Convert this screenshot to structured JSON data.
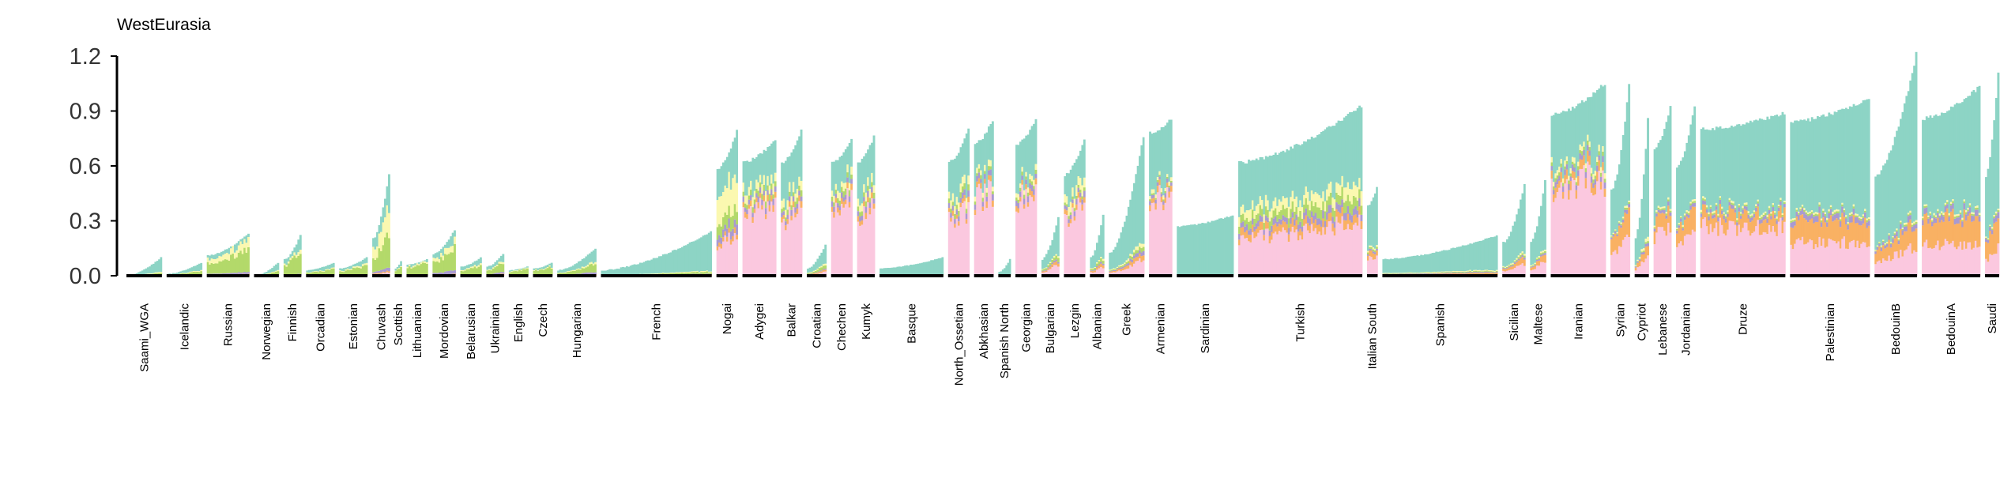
{
  "chart_data": {
    "type": "bar",
    "subtype": "stacked-admixture",
    "title": "WestEurasia",
    "xlabel": "",
    "ylabel": "",
    "ylim": [
      0,
      1.2
    ],
    "yticks": [
      "0.0",
      "0.3",
      "0.6",
      "0.9",
      "1.2"
    ],
    "grid": false,
    "legend": "none",
    "component_colors": {
      "pink": "#fbc8df",
      "orange": "#f9b163",
      "purple": "#a99ad1",
      "green": "#b3d96a",
      "yellow": "#fbf8b0",
      "teal": "#8dd4c5"
    },
    "series_order": [
      "pink",
      "orange",
      "purple",
      "green",
      "yellow",
      "teal"
    ],
    "populations": [
      {
        "name": "Saami_WGA",
        "start": 0.0,
        "end": 0.1,
        "pink": 0.0,
        "orange": 0.0,
        "purple": 0.005,
        "green": 0.01,
        "yellow": 0.005,
        "teal": 0.03
      },
      {
        "name": "Icelandic",
        "start": 0.01,
        "end": 0.07,
        "pink": 0.0,
        "orange": 0.0,
        "purple": 0.005,
        "green": 0.02,
        "yellow": 0.005,
        "teal": 0.02
      },
      {
        "name": "Russian",
        "start": 0.11,
        "end": 0.23,
        "pink": 0.0,
        "orange": 0.01,
        "purple": 0.01,
        "green": 0.12,
        "yellow": 0.05,
        "teal": 0.01
      },
      {
        "name": "Norwegian",
        "start": 0.0,
        "end": 0.07,
        "pink": 0.0,
        "orange": 0.0,
        "purple": 0.005,
        "green": 0.02,
        "yellow": 0.005,
        "teal": 0.02
      },
      {
        "name": "Finnish",
        "start": 0.09,
        "end": 0.22,
        "pink": 0.0,
        "orange": 0.0,
        "purple": 0.01,
        "green": 0.12,
        "yellow": 0.02,
        "teal": 0.01
      },
      {
        "name": "Orcadian",
        "start": 0.03,
        "end": 0.07,
        "pink": 0.0,
        "orange": 0.0,
        "purple": 0.005,
        "green": 0.03,
        "yellow": 0.005,
        "teal": 0.01
      },
      {
        "name": "Estonian",
        "start": 0.04,
        "end": 0.1,
        "pink": 0.0,
        "orange": 0.0,
        "purple": 0.005,
        "green": 0.05,
        "yellow": 0.01,
        "teal": 0.01
      },
      {
        "name": "Chuvash",
        "start": 0.2,
        "end": 0.56,
        "pink": 0.02,
        "orange": 0.01,
        "purple": 0.02,
        "green": 0.2,
        "yellow": 0.16,
        "teal": 0.01
      },
      {
        "name": "Scottish",
        "start": 0.04,
        "end": 0.08,
        "pink": 0.0,
        "orange": 0.0,
        "purple": 0.005,
        "green": 0.04,
        "yellow": 0.005,
        "teal": 0.01
      },
      {
        "name": "Lithuanian",
        "start": 0.06,
        "end": 0.09,
        "pink": 0.0,
        "orange": 0.0,
        "purple": 0.005,
        "green": 0.06,
        "yellow": 0.01,
        "teal": 0.01
      },
      {
        "name": "Mordovian",
        "start": 0.12,
        "end": 0.25,
        "pink": 0.0,
        "orange": 0.01,
        "purple": 0.02,
        "green": 0.12,
        "yellow": 0.04,
        "teal": 0.01
      },
      {
        "name": "Belarusian",
        "start": 0.05,
        "end": 0.1,
        "pink": 0.0,
        "orange": 0.0,
        "purple": 0.005,
        "green": 0.05,
        "yellow": 0.01,
        "teal": 0.01
      },
      {
        "name": "Ukrainian",
        "start": 0.05,
        "end": 0.12,
        "pink": 0.0,
        "orange": 0.01,
        "purple": 0.01,
        "green": 0.05,
        "yellow": 0.01,
        "teal": 0.01
      },
      {
        "name": "English",
        "start": 0.03,
        "end": 0.05,
        "pink": 0.0,
        "orange": 0.0,
        "purple": 0.005,
        "green": 0.03,
        "yellow": 0.005,
        "teal": 0.01
      },
      {
        "name": "Czech",
        "start": 0.04,
        "end": 0.07,
        "pink": 0.0,
        "orange": 0.0,
        "purple": 0.005,
        "green": 0.04,
        "yellow": 0.005,
        "teal": 0.01
      },
      {
        "name": "Hungarian",
        "start": 0.03,
        "end": 0.15,
        "pink": 0.0,
        "orange": 0.01,
        "purple": 0.01,
        "green": 0.04,
        "yellow": 0.01,
        "teal": 0.02
      },
      {
        "name": "French",
        "start": 0.03,
        "end": 0.24,
        "pink": 0.0,
        "orange": 0.005,
        "purple": 0.005,
        "green": 0.01,
        "yellow": 0.005,
        "teal": 0.03
      },
      {
        "name": "Nogai",
        "start": 0.58,
        "end": 0.79,
        "pink": 0.22,
        "orange": 0.03,
        "purple": 0.05,
        "green": 0.08,
        "yellow": 0.18,
        "teal": 0.15
      },
      {
        "name": "Adygei",
        "start": 0.62,
        "end": 0.74,
        "pink": 0.38,
        "orange": 0.03,
        "purple": 0.03,
        "green": 0.03,
        "yellow": 0.05,
        "teal": 0.18
      },
      {
        "name": "Balkar",
        "start": 0.62,
        "end": 0.79,
        "pink": 0.36,
        "orange": 0.03,
        "purple": 0.03,
        "green": 0.03,
        "yellow": 0.05,
        "teal": 0.19
      },
      {
        "name": "Croatian",
        "start": 0.04,
        "end": 0.17,
        "pink": 0.02,
        "orange": 0.01,
        "purple": 0.005,
        "green": 0.02,
        "yellow": 0.01,
        "teal": 0.04
      },
      {
        "name": "Chechen",
        "start": 0.62,
        "end": 0.74,
        "pink": 0.4,
        "orange": 0.03,
        "purple": 0.03,
        "green": 0.03,
        "yellow": 0.04,
        "teal": 0.16
      },
      {
        "name": "Kumyk",
        "start": 0.62,
        "end": 0.76,
        "pink": 0.38,
        "orange": 0.03,
        "purple": 0.03,
        "green": 0.03,
        "yellow": 0.05,
        "teal": 0.18
      },
      {
        "name": "Basque",
        "start": 0.04,
        "end": 0.1,
        "pink": 0.0,
        "orange": 0.0,
        "purple": 0.0,
        "green": 0.005,
        "yellow": 0.0,
        "teal": 0.06
      },
      {
        "name": "North_Ossetian",
        "start": 0.62,
        "end": 0.8,
        "pink": 0.35,
        "orange": 0.03,
        "purple": 0.03,
        "green": 0.03,
        "yellow": 0.05,
        "teal": 0.21
      },
      {
        "name": "Abkhasian",
        "start": 0.72,
        "end": 0.85,
        "pink": 0.45,
        "orange": 0.03,
        "purple": 0.03,
        "green": 0.02,
        "yellow": 0.03,
        "teal": 0.24
      },
      {
        "name": "Spanish North",
        "start": 0.02,
        "end": 0.09,
        "pink": 0.0,
        "orange": 0.0,
        "purple": 0.0,
        "green": 0.005,
        "yellow": 0.0,
        "teal": 0.06
      },
      {
        "name": "Georgian",
        "start": 0.72,
        "end": 0.85,
        "pink": 0.45,
        "orange": 0.03,
        "purple": 0.03,
        "green": 0.02,
        "yellow": 0.03,
        "teal": 0.26
      },
      {
        "name": "Bulgarian",
        "start": 0.09,
        "end": 0.32,
        "pink": 0.06,
        "orange": 0.02,
        "purple": 0.01,
        "green": 0.02,
        "yellow": 0.01,
        "teal": 0.09
      },
      {
        "name": "Lezgin",
        "start": 0.55,
        "end": 0.75,
        "pink": 0.42,
        "orange": 0.03,
        "purple": 0.03,
        "green": 0.02,
        "yellow": 0.06,
        "teal": 0.12
      },
      {
        "name": "Albanian",
        "start": 0.1,
        "end": 0.33,
        "pink": 0.05,
        "orange": 0.02,
        "purple": 0.01,
        "green": 0.02,
        "yellow": 0.01,
        "teal": 0.12
      },
      {
        "name": "Greek",
        "start": 0.12,
        "end": 0.76,
        "pink": 0.08,
        "orange": 0.03,
        "purple": 0.02,
        "green": 0.02,
        "yellow": 0.02,
        "teal": 0.2
      },
      {
        "name": "Armenian",
        "start": 0.78,
        "end": 0.86,
        "pink": 0.42,
        "orange": 0.03,
        "purple": 0.02,
        "green": 0.01,
        "yellow": 0.02,
        "teal": 0.35
      },
      {
        "name": "Sardinian",
        "start": 0.27,
        "end": 0.33,
        "pink": 0.0,
        "orange": 0.0,
        "purple": 0.0,
        "green": 0.0,
        "yellow": 0.0,
        "teal": 0.3
      },
      {
        "name": "Turkish",
        "start": 0.62,
        "end": 0.93,
        "pink": 0.28,
        "orange": 0.05,
        "purple": 0.04,
        "green": 0.06,
        "yellow": 0.07,
        "teal": 0.28
      },
      {
        "name": "Italian South",
        "start": 0.38,
        "end": 0.48,
        "pink": 0.1,
        "orange": 0.03,
        "purple": 0.01,
        "green": 0.01,
        "yellow": 0.01,
        "teal": 0.27
      },
      {
        "name": "Spanish",
        "start": 0.09,
        "end": 0.22,
        "pink": 0.005,
        "orange": 0.01,
        "purple": 0.005,
        "green": 0.005,
        "yellow": 0.005,
        "teal": 0.12
      },
      {
        "name": "Sicilian",
        "start": 0.18,
        "end": 0.5,
        "pink": 0.06,
        "orange": 0.03,
        "purple": 0.01,
        "green": 0.01,
        "yellow": 0.01,
        "teal": 0.24
      },
      {
        "name": "Maltese",
        "start": 0.19,
        "end": 0.52,
        "pink": 0.08,
        "orange": 0.04,
        "purple": 0.01,
        "green": 0.01,
        "yellow": 0.01,
        "teal": 0.25
      },
      {
        "name": "Iranian",
        "start": 0.88,
        "end": 1.05,
        "pink": 0.52,
        "orange": 0.05,
        "purple": 0.03,
        "green": 0.02,
        "yellow": 0.03,
        "teal": 0.33
      },
      {
        "name": "Syrian",
        "start": 0.46,
        "end": 1.04,
        "pink": 0.22,
        "orange": 0.14,
        "purple": 0.02,
        "green": 0.01,
        "yellow": 0.01,
        "teal": 0.42
      },
      {
        "name": "Cypriot",
        "start": 0.21,
        "end": 0.86,
        "pink": 0.12,
        "orange": 0.06,
        "purple": 0.02,
        "green": 0.01,
        "yellow": 0.02,
        "teal": 0.38
      },
      {
        "name": "Lebanese",
        "start": 0.7,
        "end": 0.92,
        "pink": 0.25,
        "orange": 0.1,
        "purple": 0.02,
        "green": 0.01,
        "yellow": 0.01,
        "teal": 0.44
      },
      {
        "name": "Jordanian",
        "start": 0.6,
        "end": 0.93,
        "pink": 0.22,
        "orange": 0.12,
        "purple": 0.02,
        "green": 0.01,
        "yellow": 0.01,
        "teal": 0.46
      },
      {
        "name": "Druze",
        "start": 0.8,
        "end": 0.89,
        "pink": 0.27,
        "orange": 0.07,
        "purple": 0.02,
        "green": 0.01,
        "yellow": 0.01,
        "teal": 0.46
      },
      {
        "name": "Palestinian",
        "start": 0.84,
        "end": 0.97,
        "pink": 0.18,
        "orange": 0.12,
        "purple": 0.03,
        "green": 0.01,
        "yellow": 0.01,
        "teal": 0.55
      },
      {
        "name": "BedouinB",
        "start": 0.55,
        "end": 1.21,
        "pink": 0.15,
        "orange": 0.12,
        "purple": 0.03,
        "green": 0.01,
        "yellow": 0.01,
        "teal": 0.8
      },
      {
        "name": "BedouinA",
        "start": 0.86,
        "end": 1.03,
        "pink": 0.17,
        "orange": 0.15,
        "purple": 0.03,
        "green": 0.01,
        "yellow": 0.01,
        "teal": 0.58
      },
      {
        "name": "Saudi",
        "start": 0.55,
        "end": 1.12,
        "pink": 0.15,
        "orange": 0.16,
        "purple": 0.03,
        "green": 0.01,
        "yellow": 0.01,
        "teal": 0.6
      }
    ]
  }
}
